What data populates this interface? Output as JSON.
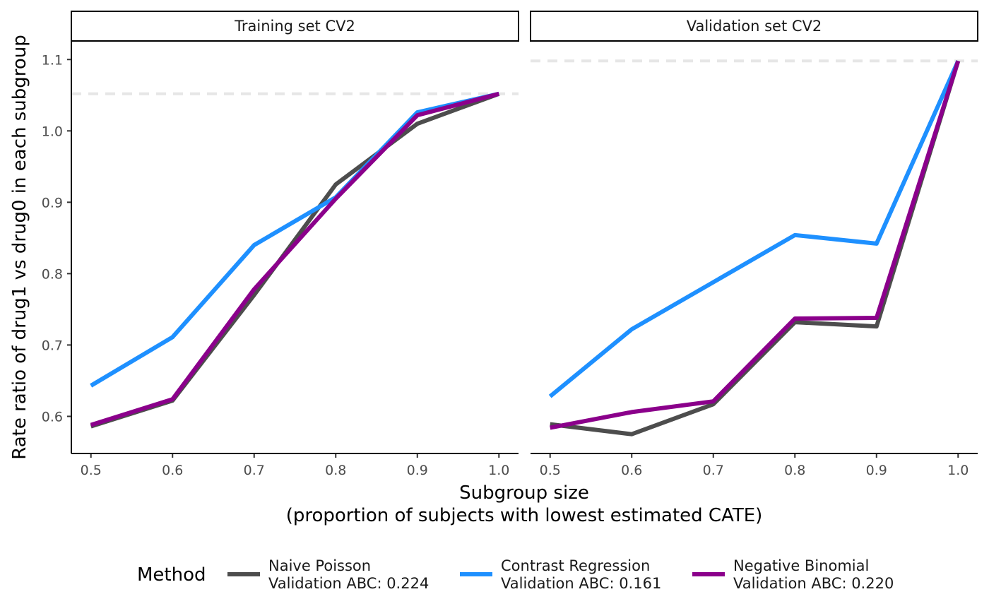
{
  "chart_data": {
    "type": "line",
    "xlabel": "Subgroup size",
    "xlabel_sub": "(proportion of subjects with lowest estimated CATE)",
    "ylabel": "Rate ratio of drug1 vs drug0 in each subgroup",
    "x_ticks": [
      "0.5",
      "0.6",
      "0.7",
      "0.8",
      "0.9",
      "1.0"
    ],
    "y_ticks": [
      "0.6",
      "0.7",
      "0.8",
      "0.9",
      "1.0",
      "1.1"
    ],
    "xlim": [
      0.476,
      1.024
    ],
    "ylim": [
      0.548,
      1.125
    ],
    "grid": false,
    "legend": {
      "position": "bottom",
      "title": "Method",
      "entries": [
        {
          "line1": "Naive Poisson",
          "line2": "Validation ABC: 0.224",
          "color": "#4d4d4d"
        },
        {
          "line1": "Contrast Regression",
          "line2": "Validation ABC: 0.161",
          "color": "#1e90ff"
        },
        {
          "line1": "Negative Binomial",
          "line2": "Validation ABC: 0.220",
          "color": "#8b008b"
        }
      ]
    },
    "panels": [
      {
        "strip": "Training set CV2",
        "reference_line": 1.052,
        "x": [
          0.5,
          0.6,
          0.7,
          0.8,
          0.9,
          1.0
        ],
        "series": [
          {
            "name": "Naive Poisson",
            "color": "#4d4d4d",
            "values": [
              0.586,
              0.622,
              0.77,
              0.925,
              1.01,
              1.052
            ]
          },
          {
            "name": "Contrast Regression",
            "color": "#1e90ff",
            "values": [
              0.643,
              0.711,
              0.84,
              0.907,
              1.026,
              1.052
            ]
          },
          {
            "name": "Negative Binomial",
            "color": "#8b008b",
            "values": [
              0.588,
              0.624,
              0.778,
              0.905,
              1.022,
              1.052
            ]
          }
        ]
      },
      {
        "strip": "Validation set CV2",
        "reference_line": 1.098,
        "x": [
          0.5,
          0.6,
          0.7,
          0.8,
          0.9,
          1.0
        ],
        "series": [
          {
            "name": "Naive Poisson",
            "color": "#4d4d4d",
            "values": [
              0.589,
              0.575,
              0.617,
              0.732,
              0.726,
              1.098
            ]
          },
          {
            "name": "Contrast Regression",
            "color": "#1e90ff",
            "values": [
              0.628,
              0.722,
              null,
              0.854,
              0.842,
              1.098
            ]
          },
          {
            "name": "Negative Binomial",
            "color": "#8b008b",
            "values": [
              0.584,
              0.606,
              0.621,
              0.737,
              0.738,
              1.098
            ]
          }
        ]
      }
    ]
  }
}
